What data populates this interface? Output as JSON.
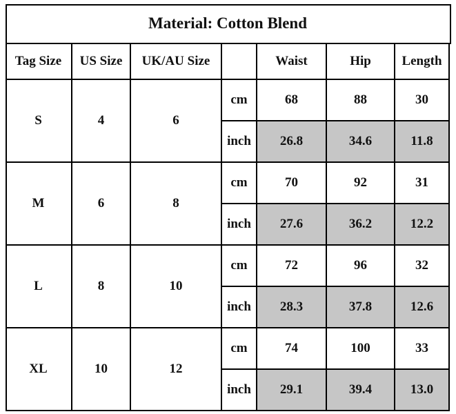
{
  "title": "Material: Cotton Blend",
  "table": {
    "header": [
      "Tag Size",
      "US Size",
      "UK/AU Size",
      "Waist",
      "Hip",
      "Length"
    ],
    "rows": [
      {
        "tag": "S",
        "us": "4",
        "uk": "6",
        "cm": {
          "unit": "cm",
          "values": [
            "68",
            "88",
            "30"
          ]
        },
        "inch": {
          "unit": "inch",
          "values": [
            "26.8",
            "34.6",
            "11.8"
          ]
        }
      },
      {
        "tag": "M",
        "us": "6",
        "uk": "8",
        "cm": {
          "unit": "cm",
          "values": [
            "70",
            "92",
            "31"
          ]
        },
        "inch": {
          "unit": "inch",
          "values": [
            "27.6",
            "36.2",
            "12.2"
          ]
        }
      },
      {
        "tag": "L",
        "us": "8",
        "uk": "10",
        "cm": {
          "unit": "cm",
          "values": [
            "72",
            "96",
            "32"
          ]
        },
        "inch": {
          "unit": "inch",
          "values": [
            "28.3",
            "37.8",
            "12.6"
          ]
        }
      },
      {
        "tag": "XL",
        "us": "10",
        "uk": "12",
        "cm": {
          "unit": "cm",
          "values": [
            "74",
            "100",
            "33"
          ]
        },
        "inch": {
          "unit": "inch",
          "values": [
            "29.1",
            "39.4",
            "13.0"
          ]
        }
      }
    ]
  }
}
